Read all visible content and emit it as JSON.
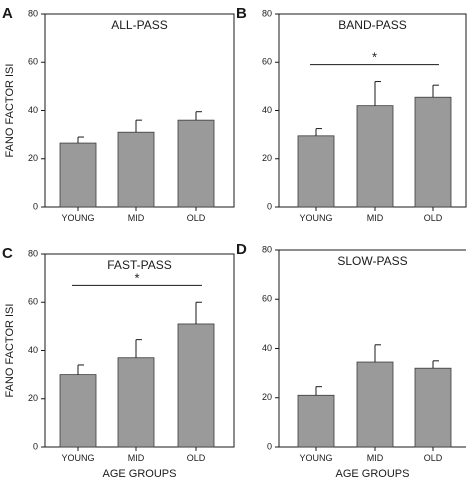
{
  "figure": {
    "ylabel": "FANO FACTOR ISI",
    "xlabel": "AGE GROUPS",
    "bar_color": "#9a9a9a",
    "axis_color": "#1a1a1a"
  },
  "chart_data": [
    {
      "panel": "A",
      "type": "bar",
      "title": "ALL-PASS",
      "categories": [
        "YOUNG",
        "MID",
        "OLD"
      ],
      "values": [
        26.5,
        31,
        36
      ],
      "errors": [
        2.5,
        5,
        3.5
      ],
      "ylim": [
        0,
        80
      ],
      "yticks": [
        0,
        20,
        40,
        60,
        80
      ],
      "ylabel": "FANO FACTOR ISI",
      "xlabel": "",
      "significance": null
    },
    {
      "panel": "B",
      "type": "bar",
      "title": "BAND-PASS",
      "categories": [
        "YOUNG",
        "MID",
        "OLD"
      ],
      "values": [
        29.5,
        42,
        45.5
      ],
      "errors": [
        3,
        10,
        5
      ],
      "ylim": [
        0,
        80
      ],
      "yticks": [
        0,
        20,
        40,
        60,
        80
      ],
      "ylabel": "",
      "xlabel": "",
      "significance": {
        "from": 0,
        "to": 2,
        "label": "*"
      }
    },
    {
      "panel": "C",
      "type": "bar",
      "title": "FAST-PASS",
      "categories": [
        "YOUNG",
        "MID",
        "OLD"
      ],
      "values": [
        30,
        37,
        51
      ],
      "errors": [
        4,
        7.5,
        9
      ],
      "ylim": [
        0,
        80
      ],
      "yticks": [
        0,
        20,
        40,
        60,
        80
      ],
      "ylabel": "FANO FACTOR ISI",
      "xlabel": "AGE GROUPS",
      "significance": {
        "from": 0,
        "to": 2,
        "label": "*"
      }
    },
    {
      "panel": "D",
      "type": "bar",
      "title": "SLOW-PASS",
      "categories": [
        "YOUNG",
        "MID",
        "OLD"
      ],
      "values": [
        21,
        34.5,
        32
      ],
      "errors": [
        3.5,
        7,
        3
      ],
      "ylim": [
        0,
        80
      ],
      "yticks": [
        0,
        20,
        40,
        60,
        80
      ],
      "ylabel": "",
      "xlabel": "AGE GROUPS",
      "significance": null
    }
  ]
}
